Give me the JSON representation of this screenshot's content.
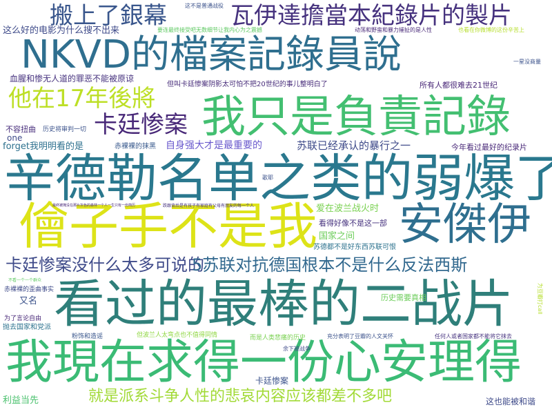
{
  "words": [
    {
      "id": "w01",
      "text": "NKVD的檔案記錄員說",
      "color": "#2f6f8f"
    },
    {
      "id": "w02",
      "text": "我只是負責記錄",
      "color": "#43bf71"
    },
    {
      "id": "w03",
      "text": "辛德勒名单之类的弱爆了",
      "color": "#2a788e"
    },
    {
      "id": "w04",
      "text": "安傑伊",
      "color": "#2f6f8f"
    },
    {
      "id": "w05",
      "text": "儈子手不是我",
      "color": "#dde318"
    },
    {
      "id": "w06",
      "text": "看过的最棒的二战片",
      "color": "#2f7f7a"
    },
    {
      "id": "w07",
      "text": "我現在求得一份心安理得",
      "color": "#3bbb75"
    },
    {
      "id": "w08",
      "text": "瓦伊達擔當本紀錄片的製片",
      "color": "#46327e"
    },
    {
      "id": "w09",
      "text": "搬上了銀幕",
      "color": "#39568c"
    },
    {
      "id": "w10",
      "text": "他在17年後將",
      "color": "#bddf26"
    },
    {
      "id": "w11",
      "text": "卡廷惨案",
      "color": "#482878"
    },
    {
      "id": "w12",
      "text": "卡廷惨案没什么太多可说的",
      "color": "#3e4a89"
    },
    {
      "id": "w13",
      "text": "5苏联对抗德国根本不是什么反法西斯",
      "color": "#31688e"
    },
    {
      "id": "w14",
      "text": "就是派系斗争人性的悲哀内容应该都差不多吧",
      "color": "#a2da37"
    },
    {
      "id": "w15",
      "text": "这么好的电影为什么搜不出来",
      "color": "#3e4a89"
    },
    {
      "id": "w16",
      "text": "血腥和惨无人道的罪恶不能被原谅",
      "color": "#46327e"
    },
    {
      "id": "w17",
      "text": "但叫卡廷惨案阴影太可怕不把20世纪的事儿整明白了",
      "color": "#472c7a"
    },
    {
      "id": "w18",
      "text": "所有人都很难去21世纪",
      "color": "#482677"
    },
    {
      "id": "w19",
      "text": "自身强大才是最重要的",
      "color": "#6a5acd"
    },
    {
      "id": "w20",
      "text": "苏联已经承认的暴行之一",
      "color": "#3e4a89"
    },
    {
      "id": "w21",
      "text": "今年看过最好的纪录片",
      "color": "#482878"
    },
    {
      "id": "w22",
      "text": "forget我明明看的是",
      "color": "#2d708e"
    },
    {
      "id": "w23",
      "text": "赤裸裸的抹黑",
      "color": "#38598c"
    },
    {
      "id": "w24",
      "text": "不容扭曲",
      "color": "#472d7b"
    },
    {
      "id": "w25",
      "text": "历史将审判一切",
      "color": "#3b528b"
    },
    {
      "id": "w26",
      "text": "one",
      "color": "#3e4a89"
    },
    {
      "id": "w27",
      "text": "爱在波兰战火时",
      "color": "#7ad151"
    },
    {
      "id": "w28",
      "text": "看得好像不是这一部",
      "color": "#46327e"
    },
    {
      "id": "w29",
      "text": "国家之间",
      "color": "#6ccd5a"
    },
    {
      "id": "w30",
      "text": "苏德都不是好东西苏联可恨",
      "color": "#2c728e"
    },
    {
      "id": "w31",
      "text": "历史需要真相",
      "color": "#6ccd5a"
    },
    {
      "id": "w32",
      "text": "又名",
      "color": "#3b528b"
    },
    {
      "id": "w33",
      "text": "赤裸裸的歪曲事实",
      "color": "#3e4a89"
    },
    {
      "id": "w34",
      "text": "为了言论自由",
      "color": "#482878"
    },
    {
      "id": "w35",
      "text": "抛去国家和党派",
      "color": "#2c728e"
    },
    {
      "id": "w36",
      "text": "粉饰和造谣",
      "color": "#39568c"
    },
    {
      "id": "w37",
      "text": "但波兰人太弯点也不值得同情",
      "color": "#90d743"
    },
    {
      "id": "w38",
      "text": "而是人类悲痛的历史",
      "color": "#7ad151"
    },
    {
      "id": "w39",
      "text": "充分表明了豆瓣的人文关怀",
      "color": "#3b528b"
    },
    {
      "id": "w40",
      "text": "任何人或者国家都不能将它抹去",
      "color": "#46337f"
    },
    {
      "id": "w41",
      "text": "余下被战争",
      "color": "#3e4a89"
    },
    {
      "id": "w42",
      "text": "卡廷惨案",
      "color": "#3b528b"
    },
    {
      "id": "w43",
      "text": "利益当先",
      "color": "#4ac16d"
    },
    {
      "id": "w44",
      "text": "这也能被和谐",
      "color": "#3e4a89"
    },
    {
      "id": "w45",
      "text": "这不是普通战役",
      "color": "#3b528b"
    },
    {
      "id": "w46",
      "text": "要连最终接受吧无数细节让我内心为之震撼",
      "color": "#5ec962"
    },
    {
      "id": "w47",
      "text": "动荡和野蛮和暴力摧扯的是人性",
      "color": "#482878"
    },
    {
      "id": "w48",
      "text": "也看在你微博的这份辛苦上",
      "color": "#b5de2b"
    },
    {
      "id": "w49",
      "text": "一星没商量",
      "color": "#3b528b"
    },
    {
      "id": "w50",
      "text": "歌耶",
      "color": "#3b528b"
    },
    {
      "id": "w51",
      "text": "最终被掩没在那片灰色的森林一个人一生只有一份简历",
      "color": "#482878"
    },
    {
      "id": "w52",
      "text": "跌跟背后是有孩子有家庭有父母有朋友的每一个人",
      "color": "#46327e"
    },
    {
      "id": "w53",
      "text": "不看一个一个群众",
      "color": "#5ec962"
    },
    {
      "id": "w54",
      "text": "为豆瓣打call",
      "color": "#b5de2b"
    }
  ]
}
